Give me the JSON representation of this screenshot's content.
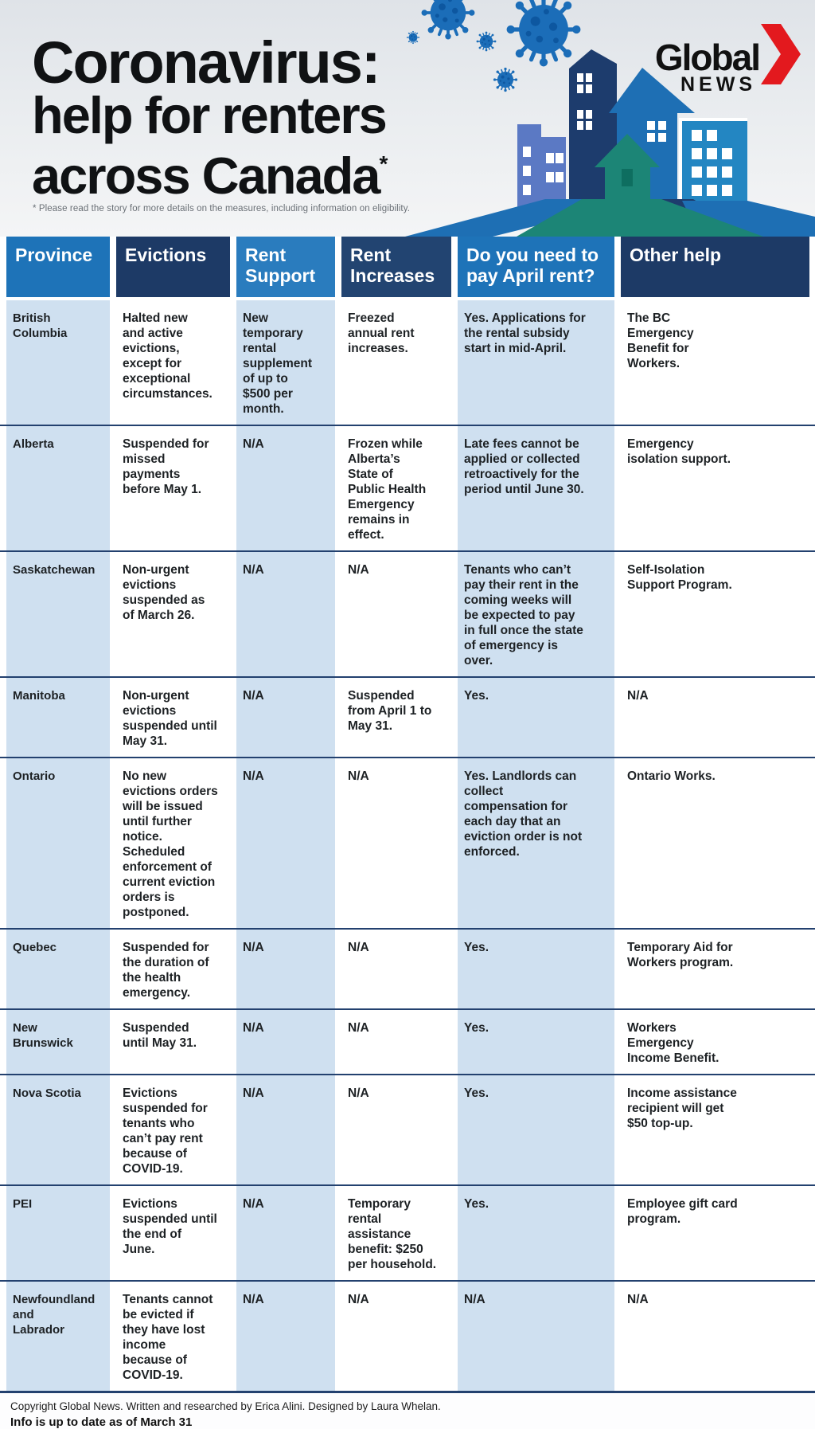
{
  "header": {
    "title_lines": [
      "Coronavirus:",
      "help for renters",
      "across Canada"
    ],
    "title_note_marker": "*",
    "footnote": "* Please read the story for more details on the measures, including information on eligibility.",
    "logo": {
      "primary": "Global",
      "secondary": "NEWS"
    }
  },
  "table": {
    "columns": [
      {
        "key": "province",
        "label": "Province"
      },
      {
        "key": "evictions",
        "label": "Evictions"
      },
      {
        "key": "rent-support",
        "label": "Rent\nSupport"
      },
      {
        "key": "rent-increases",
        "label": "Rent\nIncreases"
      },
      {
        "key": "april-rent",
        "label": "Do you need to\npay April rent?"
      },
      {
        "key": "other-help",
        "label": "Other help"
      }
    ],
    "rows": [
      {
        "id": "british-columbia",
        "province": "British\nColumbia",
        "cells": [
          "Halted new\nand active\nevictions,\nexcept for\nexceptional\ncircumstances.",
          "New\ntemporary\nrental\nsupplement\nof up to\n$500 per\nmonth.",
          "Freezed\nannual rent\nincreases.",
          "Yes. Applications for\nthe rental subsidy\nstart in mid-April.",
          "The BC\nEmergency\nBenefit for\nWorkers."
        ]
      },
      {
        "id": "alberta",
        "province": "Alberta",
        "cells": [
          "Suspended for\nmissed\npayments\nbefore May 1.",
          "N/A",
          "Frozen while\nAlberta’s\nState of\nPublic Health\nEmergency\nremains in\neffect.",
          "Late fees cannot be\napplied or collected\nretroactively for the\nperiod until June 30.",
          "Emergency\nisolation support."
        ]
      },
      {
        "id": "saskatchewan",
        "province": "Saskatchewan",
        "cells": [
          "Non-urgent\nevictions\nsuspended as\nof March 26.",
          "N/A",
          "N/A",
          "Tenants who can’t\npay their rent in the\ncoming weeks will\nbe expected to pay\nin full once the state\nof emergency is\nover.",
          "Self-Isolation\nSupport Program."
        ]
      },
      {
        "id": "manitoba",
        "province": "Manitoba",
        "cells": [
          "Non-urgent\nevictions\nsuspended until\nMay 31.",
          "N/A",
          "Suspended\nfrom April 1 to\nMay 31.",
          "Yes.",
          "N/A"
        ]
      },
      {
        "id": "ontario",
        "province": "Ontario",
        "cells": [
          "No new\nevictions orders\nwill be issued\nuntil further\nnotice.\nScheduled\nenforcement of\ncurrent eviction\norders is\npostponed.",
          "N/A",
          "N/A",
          "Yes. Landlords can\ncollect\ncompensation for\neach day that an\neviction order is not\nenforced.",
          "Ontario Works."
        ]
      },
      {
        "id": "quebec",
        "province": "Quebec",
        "cells": [
          "Suspended for\nthe duration of\nthe health\nemergency.",
          "N/A",
          "N/A",
          "Yes.",
          "Temporary Aid for\nWorkers program."
        ]
      },
      {
        "id": "new-brunswick",
        "province": "New\nBrunswick",
        "cells": [
          "Suspended\nuntil May 31.",
          "N/A",
          "N/A",
          "Yes.",
          "Workers\nEmergency\nIncome Benefit."
        ]
      },
      {
        "id": "nova-scotia",
        "province": "Nova Scotia",
        "cells": [
          "Evictions\nsuspended for\ntenants who\ncan’t pay rent\nbecause of\nCOVID-19.",
          "N/A",
          "N/A",
          "Yes.",
          "Income assistance\nrecipient will get\n$50 top-up."
        ]
      },
      {
        "id": "pei",
        "province": "PEI",
        "cells": [
          "Evictions\nsuspended until\nthe end of\nJune.",
          "N/A",
          "Temporary\nrental\nassistance\nbenefit: $250\nper household.",
          "Yes.",
          "Employee gift card\nprogram."
        ]
      },
      {
        "id": "newfoundland-and-labrador",
        "province": "Newfoundland\nand\nLabrador",
        "cells": [
          "Tenants cannot\nbe evicted if\nthey have lost\nincome\nbecause of\nCOVID-19.",
          "N/A",
          "N/A",
          "N/A",
          "N/A"
        ]
      }
    ]
  },
  "footer": {
    "copyright": "Copyright Global News. Written and researched by Erica Alini. Designed by Laura Whelan.",
    "updated": "Info is up to date as of March 31"
  },
  "colors": {
    "header_blue": "#1e73b8",
    "header_blue_alt": "#2a7cbe",
    "header_navy": "#1d3a66",
    "header_navy_alt": "#224471",
    "cell_blue": "#cfe0f0",
    "divider": "#23416f",
    "title": "#101214",
    "footnote": "#6a7076",
    "logo_red": "#e3191e",
    "virus": "#1b6db8",
    "virus_dot": "#0d57a0",
    "b_periwinkle": "#5b79c4",
    "b_navy": "#1d3c6d",
    "b_blue": "#1e6fb4",
    "b_cyan": "#2386c2",
    "b_teal": "#1c8576",
    "b_teal_dark": "#0e6e60"
  }
}
